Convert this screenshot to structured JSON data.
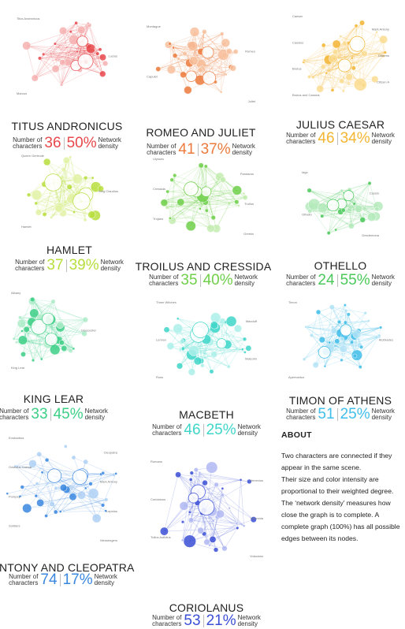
{
  "plays": [
    {
      "title": "TITUS ANDRONICUS",
      "characters": "36",
      "density": "50%",
      "color": "#e8484b",
      "light": "#f6b1b2",
      "node_labels": [
        "Titus Andronicus",
        "Lucius",
        "Marcus"
      ]
    },
    {
      "title": "ROMEO AND JULIET",
      "characters": "41",
      "density": "37%",
      "color": "#ec7a3c",
      "light": "#f7c09c",
      "node_labels": [
        "Montague",
        "Romeo",
        "Capulet",
        "Juliet"
      ]
    },
    {
      "title": "JULIUS CAESAR",
      "characters": "46",
      "density": "34%",
      "color": "#f3b532",
      "light": "#fadc92",
      "node_labels": [
        "Caesar",
        "Mark Antony",
        "Cassius",
        "Citizens",
        "Brutus",
        "Citizen A",
        "Brutus and Cassius"
      ]
    },
    {
      "title": "HAMLET",
      "characters": "37",
      "density": "39%",
      "color": "#b7de3d",
      "light": "#e2f2a6",
      "node_labels": [
        "Queen Gertrude",
        "King Claudius",
        "Hamlet"
      ]
    },
    {
      "title": "TROILUS AND CRESSIDA",
      "characters": "35",
      "density": "40%",
      "color": "#6fcf4a",
      "light": "#c3ecb0",
      "node_labels": [
        "Ulysses",
        "Pandarus",
        "Cressida",
        "Troilus",
        "Trojans",
        "Greeks"
      ]
    },
    {
      "title": "OTHELLO",
      "characters": "24",
      "density": "55%",
      "color": "#4ac95a",
      "light": "#b4eabb",
      "node_labels": [
        "Iago",
        "Cassio",
        "Othello",
        "Desdemona"
      ]
    },
    {
      "title": "KING LEAR",
      "characters": "33",
      "density": "45%",
      "color": "#3dcf86",
      "light": "#aeecc9",
      "node_labels": [
        "Albany",
        "Gloucester",
        "King Lear"
      ]
    },
    {
      "title": "MACBETH",
      "characters": "46",
      "density": "25%",
      "color": "#3fd6c9",
      "light": "#adf0ea",
      "node_labels": [
        "Three Witches",
        "Macduff",
        "Lennox",
        "Malcolm",
        "Ross"
      ]
    },
    {
      "title": "TIMON OF ATHENS",
      "characters": "51",
      "density": "25%",
      "color": "#41bde9",
      "light": "#b3e3f6",
      "node_labels": [
        "Timon",
        "Alcibiades",
        "Apemantus"
      ]
    },
    {
      "title": "ANTONY AND CLEOPATRA",
      "characters": "74",
      "density": "17%",
      "color": "#3a87e0",
      "light": "#afd0f4",
      "node_labels": [
        "Enobarbus",
        "Cleopatra",
        "Octavius Caesar",
        "Mark Antony",
        "Pompey",
        "Lepidus",
        "Soldiers",
        "Messengers"
      ]
    },
    {
      "title": "CORIOLANUS",
      "characters": "53",
      "density": "21%",
      "color": "#3b4fd6",
      "light": "#b0b8f2",
      "node_labels": [
        "Romans",
        "Menenius",
        "Coriolanus",
        "Volumnia",
        "Tullus Aufidius",
        "Volscians"
      ]
    }
  ],
  "labels": {
    "characters": "Number of\ncharacters",
    "density": "Network\ndensity"
  },
  "about": {
    "heading": "ABOUT",
    "lines": [
      "Two characters are connected if they",
      "appear in the same scene.",
      "Their size and color intensity are",
      "proportional to their weighted degree.",
      "The ‘network density’ measures how",
      "close the graph is to complete. A",
      "complete graph (100%) has all possible",
      "edges between its nodes."
    ]
  }
}
